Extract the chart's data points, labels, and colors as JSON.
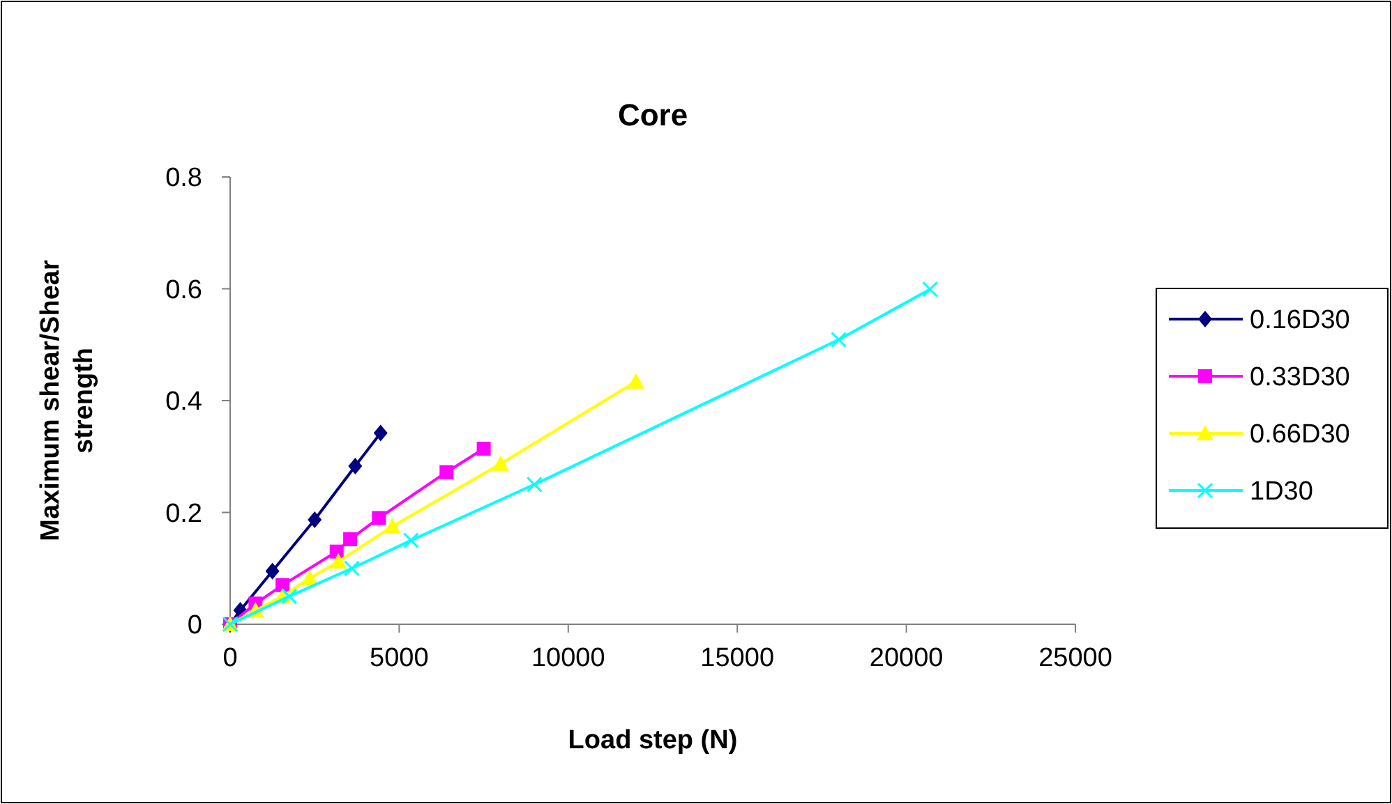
{
  "chart_data": {
    "type": "line",
    "title": "Core",
    "xlabel": "Load step (N)",
    "ylabel": "Maximum shear/Shear strength",
    "xlim": [
      0,
      25000
    ],
    "xticks": [
      0,
      5000,
      10000,
      15000,
      20000,
      25000
    ],
    "ylim": [
      0,
      0.8
    ],
    "yticks": [
      0,
      0.2,
      0.4,
      0.6,
      0.8
    ],
    "grid": false,
    "legend": "right",
    "series": [
      {
        "name": "0.16D30",
        "color": "#000080",
        "marker": "diamond",
        "x": [
          0,
          300,
          1250,
          2500,
          3700,
          4450
        ],
        "values": [
          0,
          0.025,
          0.095,
          0.187,
          0.283,
          0.342
        ]
      },
      {
        "name": "0.33D30",
        "color": "#ff00ff",
        "marker": "square",
        "x": [
          0,
          750,
          1550,
          3150,
          3550,
          4400,
          6400,
          7500
        ],
        "values": [
          0,
          0.037,
          0.07,
          0.13,
          0.152,
          0.19,
          0.272,
          0.314
        ]
      },
      {
        "name": "0.66D30",
        "color": "#ffff00",
        "marker": "triangle",
        "x": [
          0,
          750,
          1550,
          2350,
          3200,
          4800,
          8000,
          12000
        ],
        "values": [
          0,
          0.025,
          0.05,
          0.082,
          0.112,
          0.175,
          0.287,
          0.434
        ]
      },
      {
        "name": "1D30",
        "color": "#00ffff",
        "marker": "cross",
        "x": [
          0,
          1750,
          3600,
          5350,
          9000,
          18000,
          20700
        ],
        "values": [
          0,
          0.05,
          0.1,
          0.15,
          0.25,
          0.509,
          0.599
        ]
      }
    ]
  }
}
